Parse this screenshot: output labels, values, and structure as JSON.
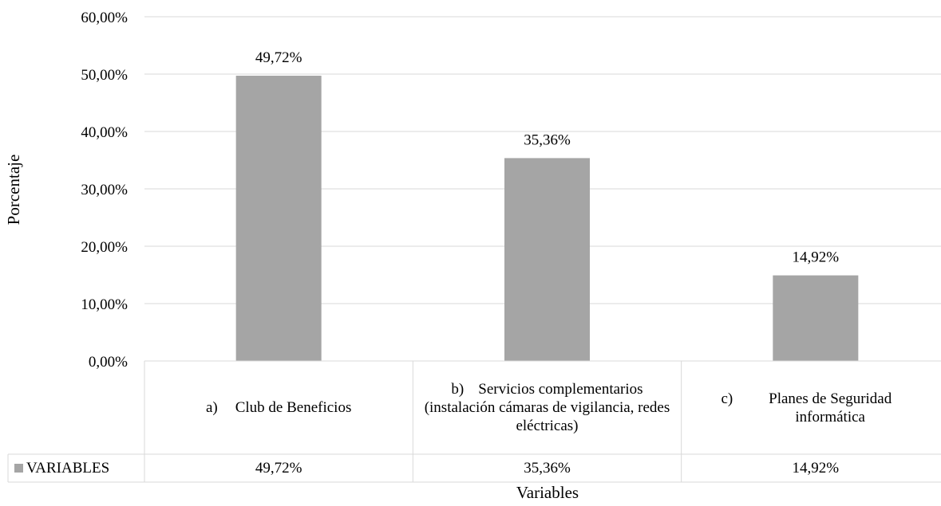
{
  "chart_data": {
    "type": "bar",
    "categories": [
      {
        "marker": "a)",
        "text": "Club de Beneficios"
      },
      {
        "marker": "b)",
        "text": "Servicios complementarios (instalación cámaras de vigilancia, redes eléctricas)"
      },
      {
        "marker": "c)",
        "text": "Planes de Seguridad informática"
      }
    ],
    "series": [
      {
        "name": "VARIABLES",
        "values": [
          49.72,
          35.36,
          14.92
        ],
        "color": "#a5a5a5",
        "labels": [
          "49,72%",
          "35,36%",
          "14,92%"
        ]
      }
    ],
    "yticks": [
      "0,00%",
      "10,00%",
      "20,00%",
      "30,00%",
      "40,00%",
      "50,00%",
      "60,00%"
    ],
    "ylim": [
      0,
      60
    ],
    "ylabel": "Porcentaje",
    "xlabel": "Variables",
    "grid": true,
    "data_table": true,
    "legend": "in data table"
  }
}
